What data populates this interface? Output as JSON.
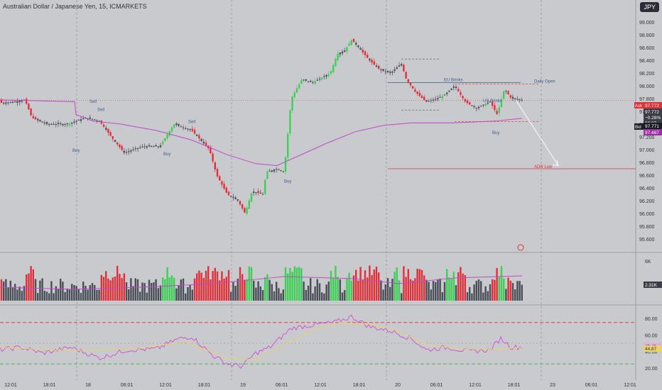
{
  "header": {
    "title": "Australian Dollar / Japanese Yen, 15, ICMARKETS",
    "currency": "JPY"
  },
  "chart_data": {
    "type": "candlestick",
    "symbol": "AUDJPY",
    "timeframe": "15",
    "exchange": "ICMARKETS",
    "y_axis": {
      "ticks": [
        95.6,
        95.8,
        96.0,
        96.2,
        96.4,
        96.6,
        96.8,
        97.0,
        97.2,
        97.4,
        97.6,
        97.8,
        98.0,
        98.2,
        98.4,
        98.6,
        98.8,
        99.0
      ],
      "labels": [
        "95.600",
        "95.800",
        "96.000",
        "96.200",
        "96.400",
        "96.600",
        "96.800",
        "97.000",
        "97.200",
        "97.400",
        "97.600",
        "97.800",
        "98.000",
        "98.200",
        "98.400",
        "98.600",
        "98.800",
        "99.000"
      ]
    },
    "x_axis": {
      "labels": [
        "12:01",
        "18:01",
        "18",
        "06:01",
        "12:01",
        "18:01",
        "19",
        "06:01",
        "12:01",
        "18:01",
        "20",
        "06:01",
        "12:01",
        "18:01",
        "23",
        "06:01",
        "12:01"
      ]
    },
    "price_labels": {
      "ask_label": "Ask",
      "ask": "97.772",
      "last": "97.772",
      "change": "−0.28%",
      "countdown": "00:27",
      "bid_label": "Bid",
      "bid": "97.771",
      "ma": "97.487"
    },
    "annotations": [
      {
        "text": "Daily Open",
        "value": 98.05
      },
      {
        "text": "EU Brinks",
        "value": 98.05
      },
      {
        "text": "US Brinks",
        "value": 97.78
      },
      {
        "text": "Sell",
        "value": 97.6
      },
      {
        "text": "Sell",
        "value": 97.55
      },
      {
        "text": "Buy",
        "value": 97.1
      },
      {
        "text": "Buy",
        "value": 97.0
      },
      {
        "text": "Buy",
        "value": 96.55
      },
      {
        "text": "Buy",
        "value": 97.4
      },
      {
        "text": "Sell",
        "value": 97.35
      },
      {
        "text": "ADR Low",
        "value": 96.7
      }
    ],
    "volume": {
      "labels": [
        "6K",
        "2.31K"
      ],
      "last": "2.31K"
    },
    "rsi": {
      "ticks": [
        "80.00",
        "60.00",
        "40.00",
        "20.00"
      ],
      "values": [
        "45.45",
        "44.87"
      ],
      "overbought": 75,
      "oversold": 25
    },
    "colors": {
      "bg": "#c8cace",
      "up": "#3ecf55",
      "down": "#e0303a",
      "neutral": "#4a4e56",
      "ma": "#c04ac8",
      "rsi": "#d34bd6",
      "rsi_ma": "#e8d36a"
    }
  }
}
